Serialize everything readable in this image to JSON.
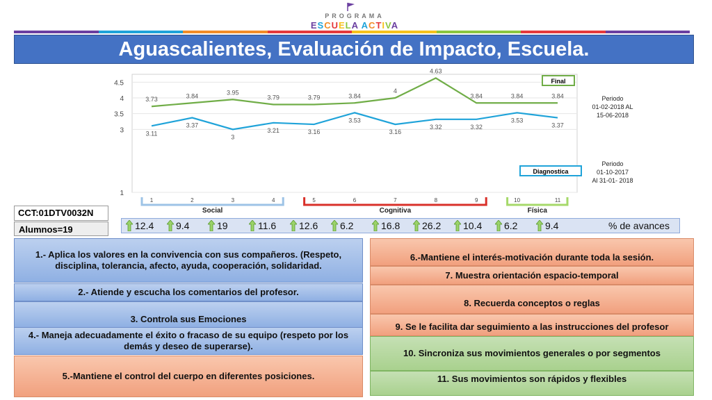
{
  "logo": {
    "line1": "PROGRAMA",
    "line2": "ESCUELA ACTIVA"
  },
  "title": "Aguascalientes, Evaluación de Impacto,  Escuela.",
  "colors": {
    "final": "#70ad47",
    "diagnostica": "#1fa3d9",
    "title_bg": "#4472c4",
    "social": "#9dc3e6",
    "cognitiva": "#d9302a",
    "fisica": "#a6d96a"
  },
  "chart_data": {
    "type": "line",
    "x": [
      1,
      2,
      3,
      4,
      5,
      6,
      7,
      8,
      9,
      10,
      11
    ],
    "ylim": [
      1,
      4.75
    ],
    "yticks": [
      "1",
      "3",
      "3.5",
      "4",
      "4.5"
    ],
    "series": [
      {
        "name": "Final",
        "values": [
          3.73,
          3.84,
          3.95,
          3.79,
          3.79,
          3.84,
          4,
          4.63,
          3.84,
          3.84,
          3.84
        ],
        "labels": [
          "3.73",
          "3.84",
          "3.95",
          "3.79",
          "3.79",
          "3.84",
          "4",
          "4.63",
          "3.84",
          "3.84",
          "3.84"
        ]
      },
      {
        "name": "Diagnostica",
        "values": [
          3.11,
          3.37,
          3,
          3.21,
          3.16,
          3.53,
          3.16,
          3.32,
          3.32,
          3.53,
          3.37
        ],
        "labels": [
          "3.11",
          "3.37",
          "3",
          "3.21",
          "3.16",
          "3.53",
          "3.16",
          "3.32",
          "3.32",
          "3.53",
          "3.37"
        ]
      }
    ],
    "groups": [
      {
        "name": "Social",
        "from": 1,
        "to": 4
      },
      {
        "name": "Cognitiva",
        "from": 5,
        "to": 9
      },
      {
        "name": "Física",
        "from": 10,
        "to": 11
      }
    ]
  },
  "periodo_final": {
    "line1": "Periodo",
    "line2": "01-02-2018 AL",
    "line3": "15-06-2018"
  },
  "periodo_diag": {
    "line1": "Periodo",
    "line2": "01-10-2017",
    "line3": "Al 31-01- 2018"
  },
  "cct": "CCT:01DTV0032N",
  "alumnos": "Alumnos=19",
  "avances": [
    "12.4",
    "9.4",
    "19",
    "11.6",
    "12.6",
    "6.2",
    "16.8",
    "26.2",
    "10.4",
    "6.2",
    "9.4"
  ],
  "avances_label": "% de avances",
  "items": {
    "i1": "1.- Aplica los valores en la convivencia con sus compañeros. (Respeto, disciplina, tolerancia, afecto, ayuda, cooperación, solidaridad.",
    "i2": "2.- Atiende y escucha los comentarios del profesor.",
    "i3": "3. Controla sus Emociones",
    "i4": "4.- Maneja adecuadamente el éxito o fracaso de su equipo (respeto por los demás y deseo de superarse).",
    "i5": "5.-Mantiene el control del cuerpo en diferentes posiciones.",
    "i6": "6.-Mantiene el interés-motivación durante toda la sesión.",
    "i7": "7. Muestra orientación espacio-temporal",
    "i8": "8. Recuerda conceptos o reglas",
    "i9": "9. Se le facilita dar seguimiento a las instrucciones del profesor",
    "i10": "10. Sincroniza sus movimientos generales o por segmentos",
    "i11": "11. Sus movimientos son rápidos y flexibles"
  }
}
